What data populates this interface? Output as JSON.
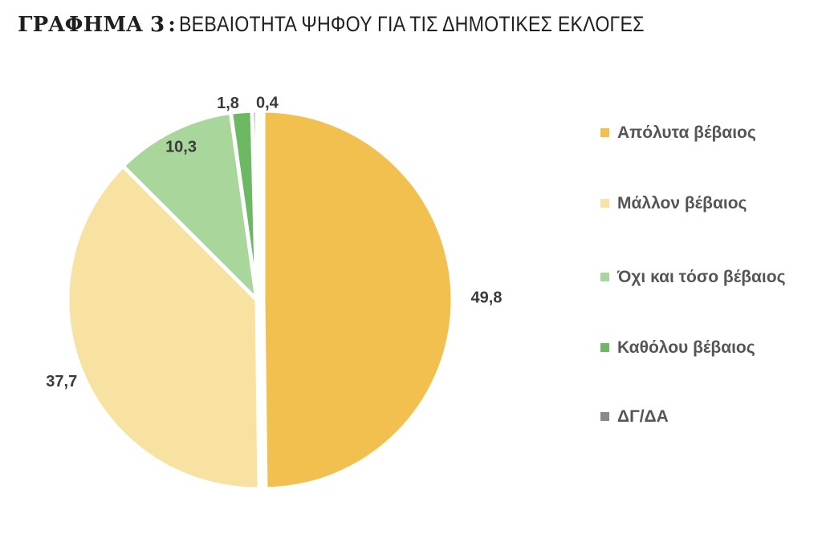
{
  "title": {
    "prefix": "ΓΡΑΦΗΜΑ 3",
    "separator": ":",
    "main": "ΒΕΒΑΙΟΤΗΤΑ ΨΗΦΟΥ ΓΙΑ ΤΙΣ ΔΗΜΟΤΙΚΕΣ ΕΚΛΟΓΕΣ"
  },
  "chart_data": {
    "type": "pie",
    "title": "ΓΡΑΦΗΜΑ 3 : ΒΕΒΑΙΟΤΗΤΑ ΨΗΦΟΥ ΓΙΑ ΤΙΣ ΔΗΜΟΤΙΚΕΣ ΕΚΛΟΓΕΣ",
    "legend_position": "right",
    "slices": [
      {
        "label": "Απόλυτα βέβαιος",
        "value": 49.8,
        "display": "49,8",
        "color": "#F2C04E"
      },
      {
        "label": "Μάλλον βέβαιος",
        "value": 37.7,
        "display": "37,7",
        "color": "#F8E2A1"
      },
      {
        "label": "Όχι και τόσο βέβαιος",
        "value": 10.3,
        "display": "10,3",
        "color": "#A8D69B"
      },
      {
        "label": "Καθόλου βέβαιος",
        "value": 1.8,
        "display": "1,8",
        "color": "#6DB862"
      },
      {
        "label": "ΔΓ/ΔΑ",
        "value": 0.4,
        "display": "0,4",
        "color": "#8A8A8A"
      }
    ]
  }
}
